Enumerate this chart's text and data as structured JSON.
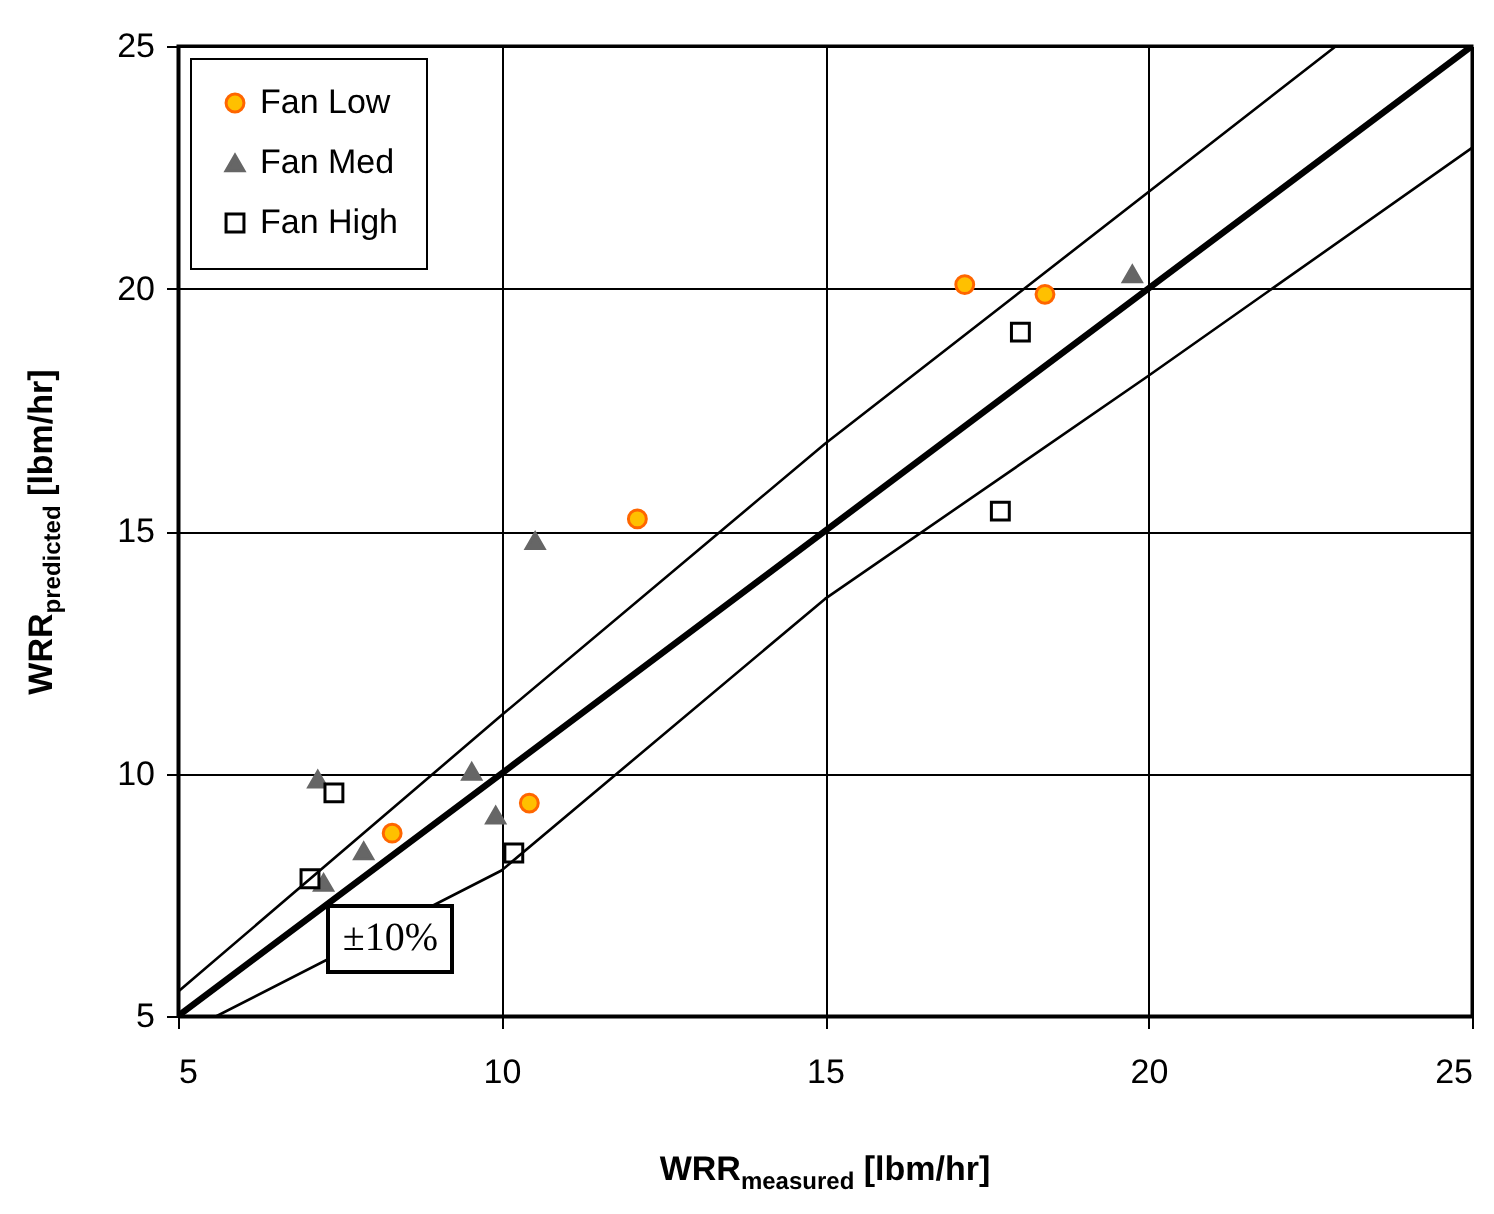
{
  "chart_data": {
    "type": "scatter",
    "xlabel": "WRR$_{measured}$ [lbm/hr]",
    "ylabel": "WRR$_{predicted}$ [lbm/hr]",
    "xlim": [
      5,
      25
    ],
    "ylim": [
      5,
      25
    ],
    "xticks": [
      5,
      10,
      15,
      20,
      25
    ],
    "yticks": [
      5,
      10,
      15,
      20,
      25
    ],
    "grid": true,
    "legend": "top left",
    "annotations": [
      "±10%"
    ],
    "series": [
      {
        "name": "Fan Low",
        "color": "#ffc000",
        "marker": "circle",
        "x": [
          8.31,
          10.43,
          12.1,
          17.16,
          18.4
        ],
        "values": [
          8.77,
          9.39,
          15.25,
          20.08,
          19.88
        ]
      },
      {
        "name": "Fan Med",
        "color": "#666666",
        "marker": "triangle",
        "x": [
          7.16,
          7.25,
          7.87,
          9.54,
          9.91,
          10.52,
          19.75
        ],
        "values": [
          9.88,
          7.75,
          8.4,
          10.04,
          9.14,
          14.8,
          20.3
        ]
      },
      {
        "name": "Fan High",
        "color": "#000000",
        "marker": "square",
        "x": [
          7.04,
          7.41,
          10.19,
          17.71,
          18.02
        ],
        "values": [
          7.83,
          9.6,
          8.36,
          15.41,
          19.1
        ]
      },
      {
        "type": "line",
        "color": "#000000",
        "x": [
          5,
          25
        ],
        "values": [
          5,
          25
        ]
      },
      {
        "type": "line",
        "color": "#000000",
        "x": [
          5,
          10,
          15,
          22.9
        ],
        "values": [
          5.5,
          11.2,
          16.8,
          25
        ]
      },
      {
        "type": "line",
        "color": "#000000",
        "x": [
          5.6,
          10,
          15,
          20,
          25
        ],
        "values": [
          5,
          8,
          13.6,
          18.2,
          22.9
        ]
      }
    ]
  }
}
